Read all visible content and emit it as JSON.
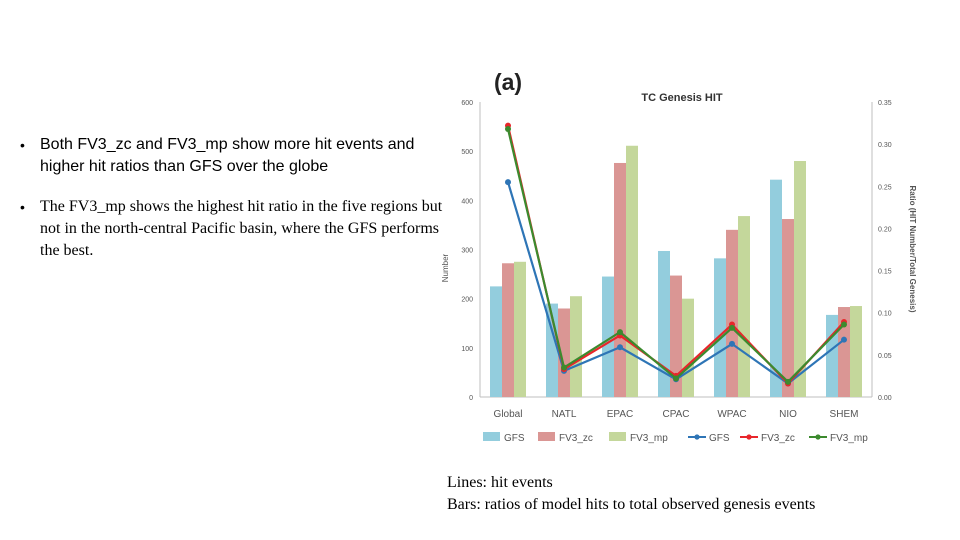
{
  "bullets": [
    "Both FV3_zc and FV3_mp show more hit events and higher hit ratios than GFS over the globe",
    "The FV3_mp shows the highest hit ratio in the five regions but not in the north-central Pacific basin, where the GFS performs the best."
  ],
  "caption": {
    "line1": "Lines: hit events",
    "line2": "Bars: ratios of model hits to total observed genesis events"
  },
  "chart_data": {
    "type": "bar",
    "panel_label": "(a)",
    "title": "TC Genesis HIT",
    "ylabel": "Number",
    "y2label": "Ratio (HIT Number/Total Genesis)",
    "categories": [
      "Global",
      "NATL",
      "EPAC",
      "CPAC",
      "WPAC",
      "NIO",
      "SHEM"
    ],
    "ylim": [
      0,
      600
    ],
    "yticks": [
      0,
      100,
      200,
      300,
      400,
      500,
      600
    ],
    "y2lim": [
      0,
      0.35
    ],
    "y2ticks": [
      "0.00",
      "0.05",
      "0.10",
      "0.15",
      "0.20",
      "0.25",
      "0.30",
      "0.35"
    ],
    "bar_series": [
      {
        "name": "GFS",
        "color": "#93CDDD",
        "values": [
          225,
          190,
          245,
          297,
          282,
          442,
          167
        ]
      },
      {
        "name": "FV3_zc",
        "color": "#DA9694",
        "values": [
          272,
          180,
          476,
          247,
          340,
          362,
          183
        ]
      },
      {
        "name": "FV3_mp",
        "color": "#C4D79B",
        "values": [
          275,
          205,
          511,
          200,
          368,
          480,
          185
        ]
      }
    ],
    "line_series": [
      {
        "name": "GFS",
        "color": "#2E75B6",
        "values": [
          0.255,
          0.031,
          0.059,
          0.021,
          0.063,
          0.016,
          0.068
        ]
      },
      {
        "name": "FV3_zc",
        "color": "#E8262B",
        "values": [
          0.322,
          0.033,
          0.073,
          0.025,
          0.086,
          0.016,
          0.089
        ]
      },
      {
        "name": "FV3_mp",
        "color": "#3C8A2E",
        "values": [
          0.318,
          0.035,
          0.077,
          0.022,
          0.082,
          0.018,
          0.086
        ]
      }
    ],
    "legend": [
      "GFS",
      "FV3_zc",
      "FV3_mp",
      "GFS",
      "FV3_zc",
      "FV3_mp"
    ],
    "legend_position": "bottom",
    "grid": false
  }
}
